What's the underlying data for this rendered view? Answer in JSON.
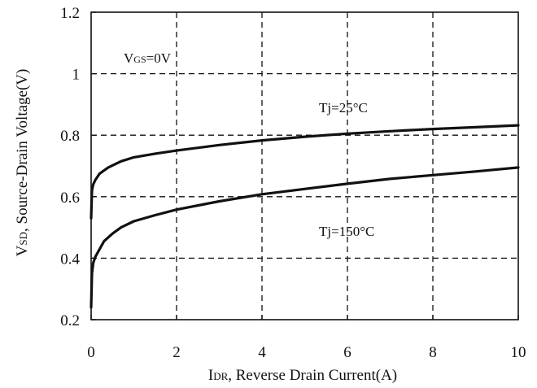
{
  "chart_data": {
    "type": "line",
    "xlabel": "IDR, Reverse Drain Current(A)",
    "xlabel_main": "I",
    "xlabel_sub": "DR",
    "xlabel_rest": ", Reverse Drain Current(A)",
    "ylabel": "VSD, Source-Drain Voltage(V)",
    "ylabel_main": "V",
    "ylabel_sub": "SD",
    "ylabel_rest": ", Source-Drain Voltage(V)",
    "xlim": [
      0,
      10
    ],
    "ylim": [
      0.2,
      1.2
    ],
    "x_ticks": [
      "0",
      "2",
      "4",
      "6",
      "8",
      "10"
    ],
    "y_ticks": [
      "0.2",
      "0.4",
      "0.6",
      "0.8",
      "1",
      "1.2"
    ],
    "grid": true,
    "annotations": {
      "condition_main": "V",
      "condition_sub": "GS",
      "condition_rest": "=0V",
      "tj25": "Tj=25°C",
      "tj150": "Tj=150°C"
    },
    "series": [
      {
        "name": "Tj=25°C",
        "x": [
          0.0,
          0.02,
          0.05,
          0.1,
          0.2,
          0.4,
          0.7,
          1.0,
          1.5,
          2.0,
          3.0,
          4.0,
          5.0,
          6.0,
          7.0,
          8.0,
          9.0,
          10.0
        ],
        "y": [
          0.53,
          0.62,
          0.64,
          0.655,
          0.675,
          0.695,
          0.715,
          0.728,
          0.74,
          0.75,
          0.768,
          0.783,
          0.795,
          0.805,
          0.813,
          0.82,
          0.826,
          0.832
        ]
      },
      {
        "name": "Tj=150°C",
        "x": [
          0.0,
          0.02,
          0.05,
          0.1,
          0.2,
          0.3,
          0.5,
          0.7,
          1.0,
          1.5,
          2.0,
          3.0,
          4.0,
          5.0,
          6.0,
          7.0,
          8.0,
          9.0,
          10.0
        ],
        "y": [
          0.24,
          0.35,
          0.385,
          0.405,
          0.43,
          0.455,
          0.48,
          0.5,
          0.52,
          0.54,
          0.558,
          0.585,
          0.608,
          0.625,
          0.642,
          0.658,
          0.67,
          0.682,
          0.695
        ]
      }
    ]
  }
}
